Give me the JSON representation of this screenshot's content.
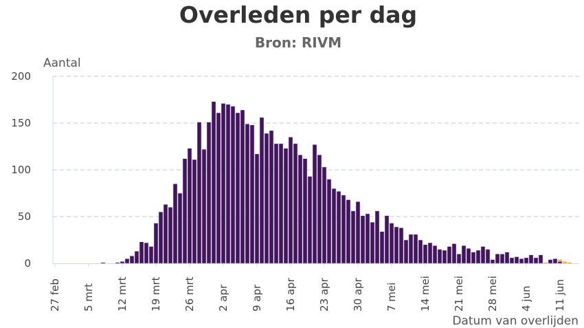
{
  "chart_data": {
    "type": "bar",
    "stacked": true,
    "title": "Overleden per dag",
    "subtitle": "Bron: RIVM",
    "ylabel": "Aantal",
    "xlabel": "Datum van overlijden",
    "ylim": [
      0,
      200
    ],
    "yticks": [
      0,
      50,
      100,
      150,
      200
    ],
    "grid": true,
    "xtick_labels": [
      "27 feb",
      "5 mrt",
      "12 mrt",
      "19 mrt",
      "26 mrt",
      "2 apr",
      "9 apr",
      "16 apr",
      "23 apr",
      "30 apr",
      "7 mei",
      "14 mei",
      "21 mei",
      "28 mei",
      "4 jun",
      "11 jun"
    ],
    "categories": [
      "27 feb",
      "28 feb",
      "29 feb",
      "1 mrt",
      "2 mrt",
      "3 mrt",
      "4 mrt",
      "5 mrt",
      "6 mrt",
      "7 mrt",
      "8 mrt",
      "9 mrt",
      "10 mrt",
      "11 mrt",
      "12 mrt",
      "13 mrt",
      "14 mrt",
      "15 mrt",
      "16 mrt",
      "17 mrt",
      "18 mrt",
      "19 mrt",
      "20 mrt",
      "21 mrt",
      "22 mrt",
      "23 mrt",
      "24 mrt",
      "25 mrt",
      "26 mrt",
      "27 mrt",
      "28 mrt",
      "29 mrt",
      "30 mrt",
      "31 mrt",
      "1 apr",
      "2 apr",
      "3 apr",
      "4 apr",
      "5 apr",
      "6 apr",
      "7 apr",
      "8 apr",
      "9 apr",
      "10 apr",
      "11 apr",
      "12 apr",
      "13 apr",
      "14 apr",
      "15 apr",
      "16 apr",
      "17 apr",
      "18 apr",
      "19 apr",
      "20 apr",
      "21 apr",
      "22 apr",
      "23 apr",
      "24 apr",
      "25 apr",
      "26 apr",
      "27 apr",
      "28 apr",
      "29 apr",
      "30 apr",
      "1 mei",
      "2 mei",
      "3 mei",
      "4 mei",
      "5 mei",
      "6 mei",
      "7 mei",
      "8 mei",
      "9 mei",
      "10 mei",
      "11 mei",
      "12 mei",
      "13 mei",
      "14 mei",
      "15 mei",
      "16 mei",
      "17 mei",
      "18 mei",
      "19 mei",
      "20 mei",
      "21 mei",
      "22 mei",
      "23 mei",
      "24 mei",
      "25 mei",
      "26 mei",
      "27 mei",
      "28 mei",
      "29 mei",
      "30 mei",
      "31 mei",
      "1 jun",
      "2 jun",
      "3 jun",
      "4 jun",
      "5 jun",
      "6 jun",
      "7 jun",
      "8 jun",
      "9 jun",
      "10 jun",
      "11 jun",
      "12 jun",
      "13 jun"
    ],
    "series": [
      {
        "color": "#42145f",
        "values": [
          0,
          0,
          0,
          0,
          0,
          0,
          0,
          0,
          0,
          0,
          1,
          0,
          0,
          1,
          2,
          5,
          8,
          13,
          23,
          22,
          18,
          43,
          55,
          63,
          60,
          85,
          75,
          112,
          123,
          111,
          151,
          122,
          151,
          173,
          161,
          171,
          170,
          168,
          161,
          164,
          149,
          148,
          117,
          156,
          139,
          142,
          128,
          128,
          123,
          135,
          128,
          116,
          112,
          93,
          127,
          116,
          103,
          90,
          80,
          77,
          73,
          68,
          56,
          66,
          51,
          53,
          44,
          56,
          34,
          51,
          43,
          39,
          38,
          25,
          31,
          31,
          25,
          20,
          22,
          19,
          15,
          14,
          18,
          21,
          10,
          19,
          16,
          12,
          14,
          18,
          15,
          4,
          10,
          10,
          12,
          6,
          7,
          5,
          6,
          9,
          6,
          9,
          0,
          4,
          5,
          2,
          0,
          0
        ]
      },
      {
        "color": "#ffb612",
        "values": [
          0,
          0,
          0,
          0,
          0,
          0,
          0,
          0,
          0,
          0,
          0,
          0,
          0,
          0,
          0,
          0,
          0,
          0,
          0,
          0,
          0,
          0,
          0,
          0,
          0,
          0,
          0,
          0,
          0,
          0,
          0,
          0,
          0,
          0,
          0,
          0,
          0,
          0,
          0,
          0,
          0,
          0,
          0,
          0,
          0,
          0,
          0,
          0,
          0,
          0,
          0,
          0,
          0,
          0,
          0,
          0,
          0,
          0,
          0,
          0,
          0,
          0,
          0,
          0,
          0,
          0,
          0,
          0,
          0,
          0,
          0,
          0,
          0,
          0,
          0,
          0,
          0,
          0,
          0,
          0,
          0,
          0,
          0,
          0,
          0,
          0,
          0,
          0,
          0,
          0,
          0,
          0,
          0,
          0,
          0,
          0,
          0,
          0,
          0,
          0,
          0,
          0,
          1,
          0,
          0,
          2,
          2,
          1
        ]
      }
    ]
  }
}
